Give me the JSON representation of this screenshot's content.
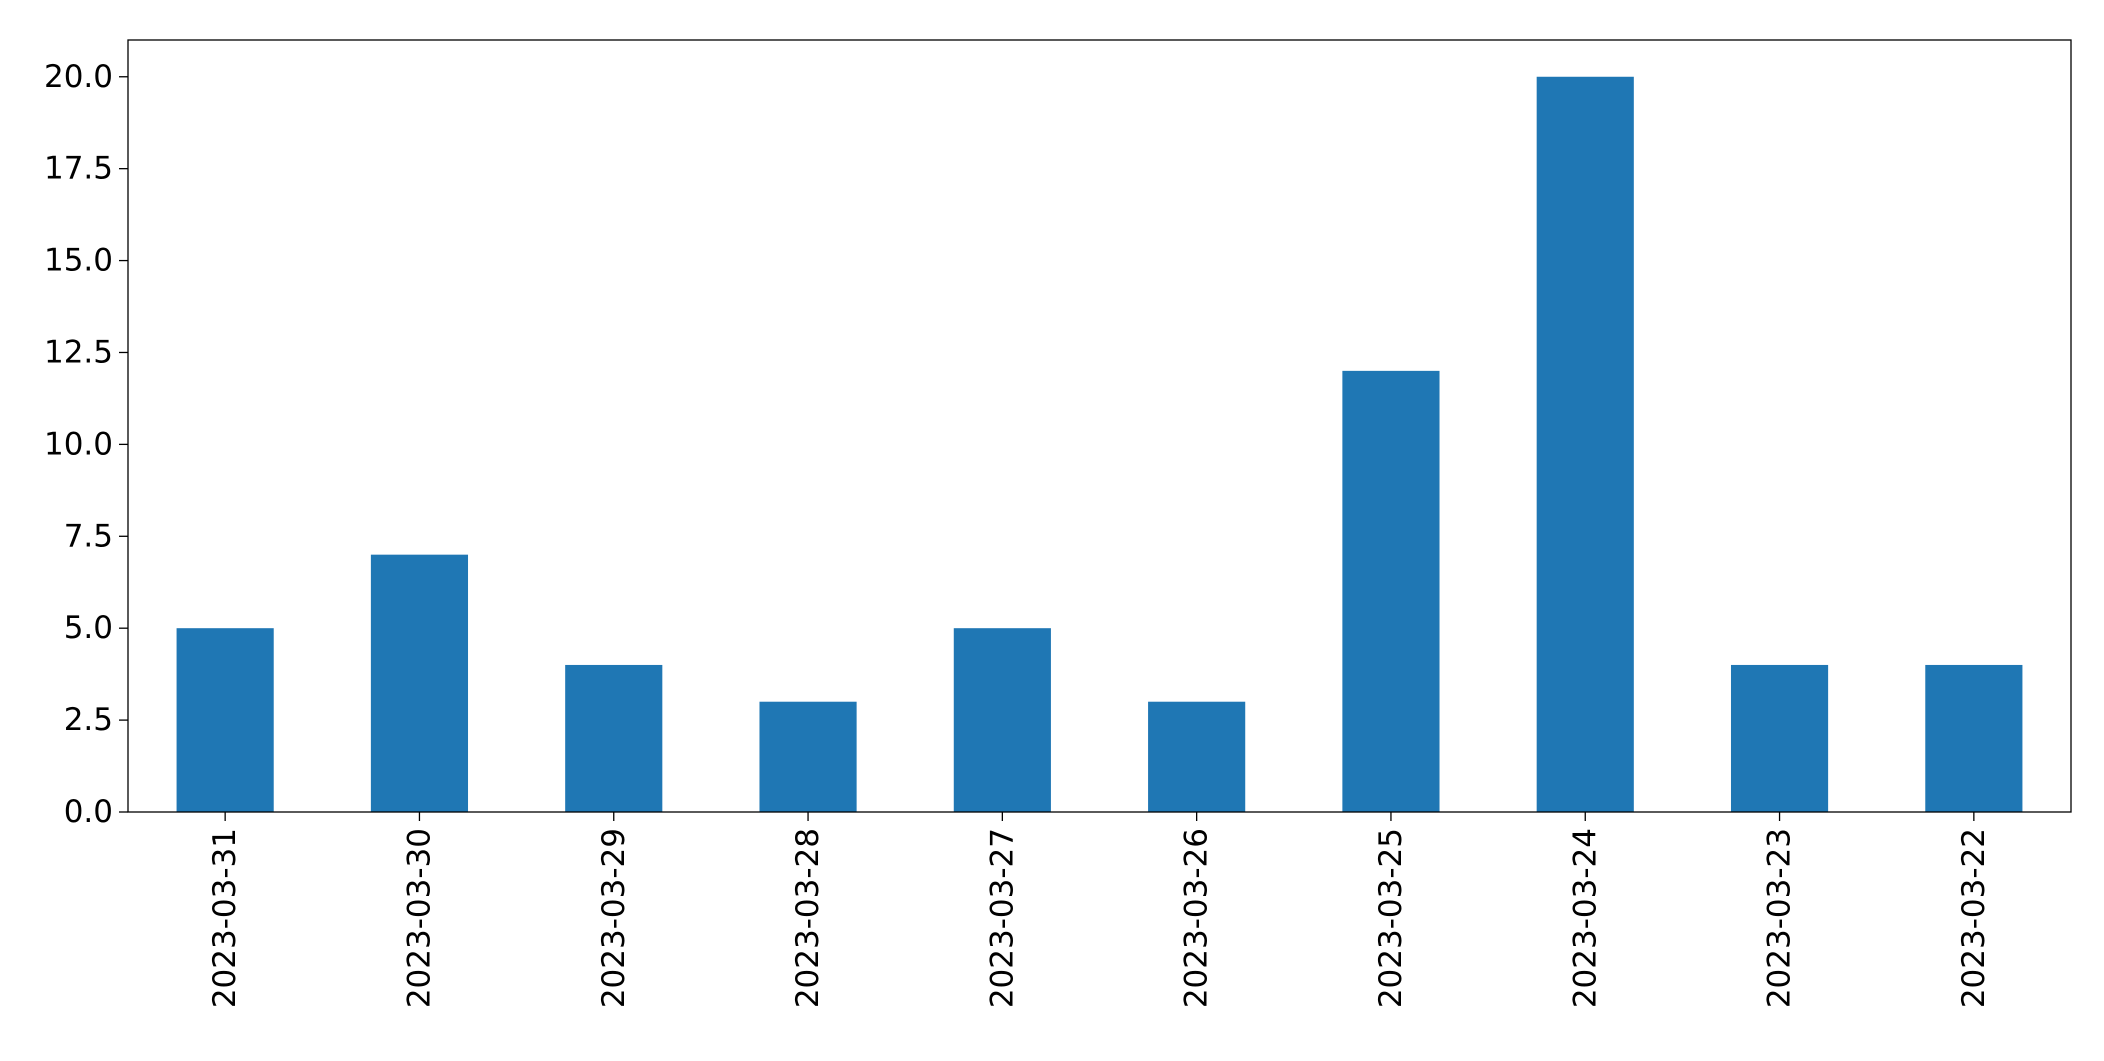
{
  "chart_data": {
    "type": "bar",
    "categories": [
      "2023-03-31",
      "2023-03-30",
      "2023-03-29",
      "2023-03-28",
      "2023-03-27",
      "2023-03-26",
      "2023-03-25",
      "2023-03-24",
      "2023-03-23",
      "2023-03-22"
    ],
    "values": [
      5,
      7,
      4,
      3,
      5,
      3,
      12,
      20,
      4,
      4
    ],
    "title": "",
    "xlabel": "",
    "ylabel": "",
    "ylim": [
      0,
      21
    ],
    "yticks": [
      "0.0",
      "2.5",
      "5.0",
      "7.5",
      "10.0",
      "12.5",
      "15.0",
      "17.5",
      "20.0"
    ],
    "bar_color": "#1f77b4",
    "grid": false,
    "legend": "none"
  }
}
